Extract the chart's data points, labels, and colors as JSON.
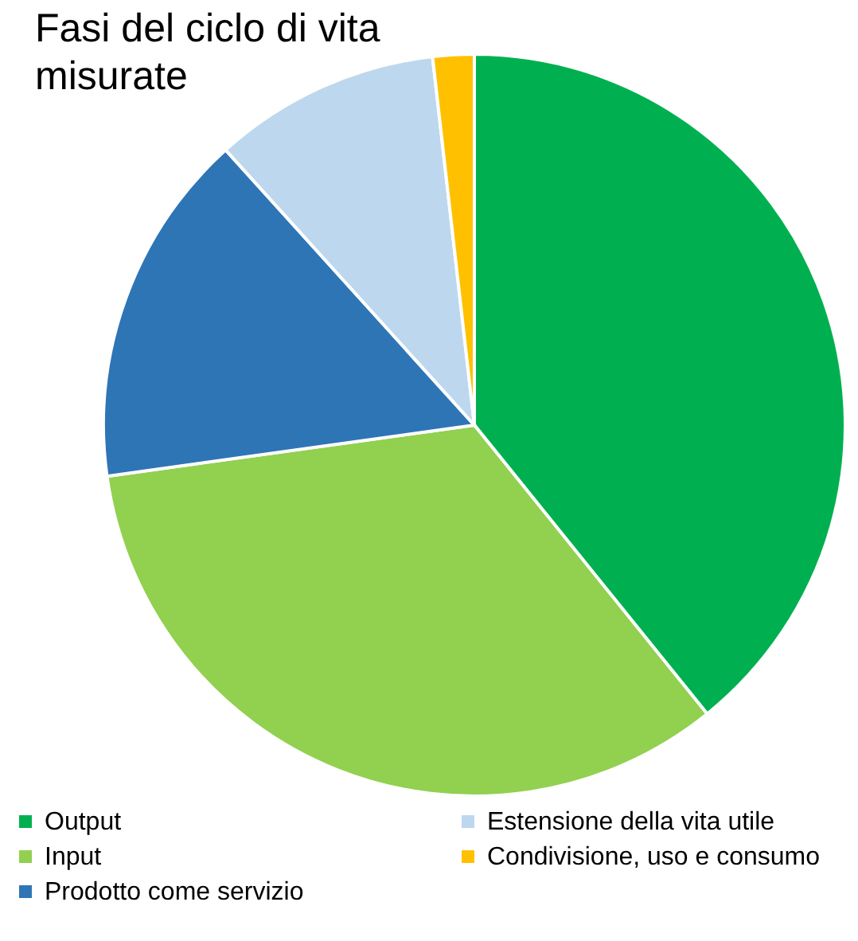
{
  "chart_data": {
    "type": "pie",
    "title": "Fasi del ciclo di vita\nmisurate",
    "categories": [
      "Output",
      "Input",
      "Prodotto come servizio",
      "Estensione della vita utile",
      "Condivisione, uso e consumo"
    ],
    "values": [
      39.2,
      33.6,
      15.5,
      9.9,
      1.8
    ],
    "colors": [
      "#00b050",
      "#92d050",
      "#2e75b6",
      "#bdd7ee",
      "#ffc000"
    ],
    "legend": "bottom"
  }
}
